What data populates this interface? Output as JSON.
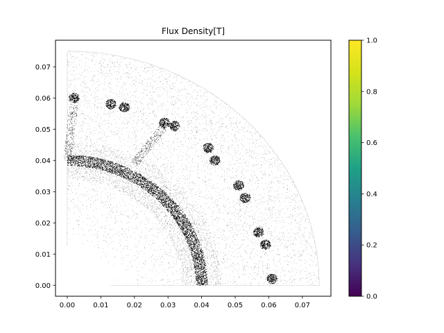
{
  "chart_data": {
    "type": "scatter",
    "title": "Flux Density[T]",
    "xlabel": "",
    "ylabel": "",
    "xlim": [
      -0.0035,
      0.0785
    ],
    "ylim": [
      -0.0035,
      0.0785
    ],
    "x_ticks": [
      "0.00",
      "0.01",
      "0.02",
      "0.03",
      "0.04",
      "0.05",
      "0.06",
      "0.07"
    ],
    "y_ticks": [
      "0.00",
      "0.01",
      "0.02",
      "0.03",
      "0.04",
      "0.05",
      "0.06",
      "0.07"
    ],
    "grid": false,
    "marker": "black point cloud (finite-element mesh nodes)",
    "mesh_geometry": {
      "outer_radius": 0.075,
      "inner_radius": 0.013,
      "angular_range_deg": [
        0,
        90
      ],
      "dense_arc_radius": 0.04
    },
    "dense_clusters": [
      {
        "x": 0.002,
        "y": 0.06
      },
      {
        "x": 0.013,
        "y": 0.058
      },
      {
        "x": 0.017,
        "y": 0.057
      },
      {
        "x": 0.029,
        "y": 0.052
      },
      {
        "x": 0.032,
        "y": 0.051
      },
      {
        "x": 0.044,
        "y": 0.04
      },
      {
        "x": 0.042,
        "y": 0.044
      },
      {
        "x": 0.051,
        "y": 0.032
      },
      {
        "x": 0.053,
        "y": 0.028
      },
      {
        "x": 0.057,
        "y": 0.017
      },
      {
        "x": 0.059,
        "y": 0.013
      },
      {
        "x": 0.061,
        "y": 0.002
      }
    ],
    "colorbar": {
      "colormap": "viridis",
      "range": [
        0.0,
        1.0
      ],
      "ticks": [
        "0.0",
        "0.2",
        "0.4",
        "0.6",
        "0.8",
        "1.0"
      ]
    }
  }
}
